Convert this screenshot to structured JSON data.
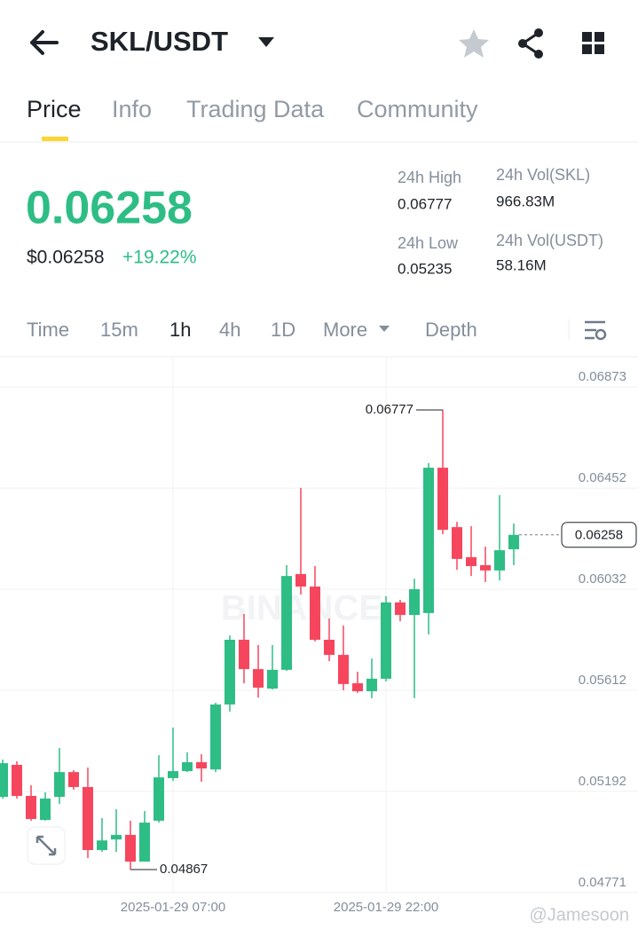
{
  "header": {
    "pair": "SKL/USDT"
  },
  "tabs": [
    "Price",
    "Info",
    "Trading Data",
    "Community"
  ],
  "price": {
    "last": "0.06258",
    "usd": "$0.06258",
    "change": "+19.22%"
  },
  "stats": [
    {
      "label": "24h High",
      "value": "0.06777"
    },
    {
      "label": "24h Low",
      "value": "0.05235"
    },
    {
      "label": "24h Vol(SKL)",
      "value": "966.83M"
    },
    {
      "label": "24h Vol(USDT)",
      "value": "58.16M"
    }
  ],
  "intervals": [
    "Time",
    "15m",
    "1h",
    "4h",
    "1D",
    "More",
    "Depth"
  ],
  "watermark": "BINANCE",
  "credit": "@Jamesoon",
  "chart_data": {
    "type": "candlestick",
    "categories": [
      null,
      null,
      null,
      null,
      null,
      null,
      null,
      null,
      null,
      null,
      null,
      null,
      "2025-01-29 07:00",
      null,
      null,
      null,
      null,
      null,
      null,
      null,
      null,
      null,
      null,
      null,
      null,
      null,
      null,
      "2025-01-29 22:00",
      null,
      null,
      null,
      null,
      null,
      null,
      null,
      null,
      null
    ],
    "open": [
      0.05169,
      0.05302,
      0.05173,
      0.05073,
      0.05169,
      0.05272,
      0.0521,
      0.04948,
      0.04992,
      0.05011,
      0.049,
      0.0507,
      0.05247,
      0.05276,
      0.05313,
      0.05283,
      0.05553,
      0.05822,
      0.057,
      0.05619,
      0.05697,
      0.06095,
      0.06043,
      0.05822,
      0.05759,
      0.05641,
      0.05608,
      0.0566,
      0.05977,
      0.05925,
      0.05933,
      0.06537,
      0.0629,
      0.06165,
      0.06132,
      0.0611,
      0.06198
    ],
    "high": [
      0.05324,
      0.05317,
      0.05217,
      0.05188,
      0.05372,
      0.0528,
      0.05291,
      0.05081,
      0.05118,
      0.0507,
      0.0511,
      0.05342,
      0.05457,
      0.05354,
      0.05346,
      0.0556,
      0.0584,
      0.05929,
      0.058,
      0.058,
      0.06132,
      0.06453,
      0.06128,
      0.0591,
      0.05881,
      0.05689,
      0.05744,
      0.06003,
      0.05988,
      0.06076,
      0.06556,
      0.06777,
      0.06312,
      0.06294,
      0.06209,
      0.06423,
      0.06305
    ],
    "low": [
      0.05162,
      0.05162,
      0.0507,
      0.0507,
      0.0514,
      0.05199,
      0.04915,
      0.0494,
      0.0494,
      0.04867,
      0.049,
      0.05062,
      0.05236,
      0.05272,
      0.05232,
      0.05272,
      0.05523,
      0.05641,
      0.05582,
      0.05615,
      0.05693,
      0.0601,
      0.05815,
      0.05733,
      0.05612,
      0.05601,
      0.05579,
      0.05649,
      0.05899,
      0.05579,
      0.05844,
      0.06261,
      0.06113,
      0.06087,
      0.06062,
      0.06069,
      0.06132
    ],
    "close": [
      0.05309,
      0.05173,
      0.05077,
      0.05162,
      0.05272,
      0.0521,
      0.04948,
      0.04988,
      0.05011,
      0.049,
      0.05062,
      0.0525,
      0.05276,
      0.05313,
      0.05287,
      0.05553,
      0.05822,
      0.057,
      0.05623,
      0.05697,
      0.06087,
      0.06043,
      0.05822,
      0.05759,
      0.05638,
      0.05608,
      0.0566,
      0.05977,
      0.05925,
      0.06032,
      0.06537,
      0.06279,
      0.06158,
      0.06128,
      0.0611,
      0.06194,
      0.06258
    ],
    "colors": {
      "up": "#2ebd85",
      "down": "#f6465d"
    },
    "ylim": [
      0.04771,
      0.06873
    ],
    "yticks": [
      0.06873,
      0.06452,
      0.06032,
      0.05612,
      0.05192,
      0.04771
    ],
    "grid": true
  }
}
